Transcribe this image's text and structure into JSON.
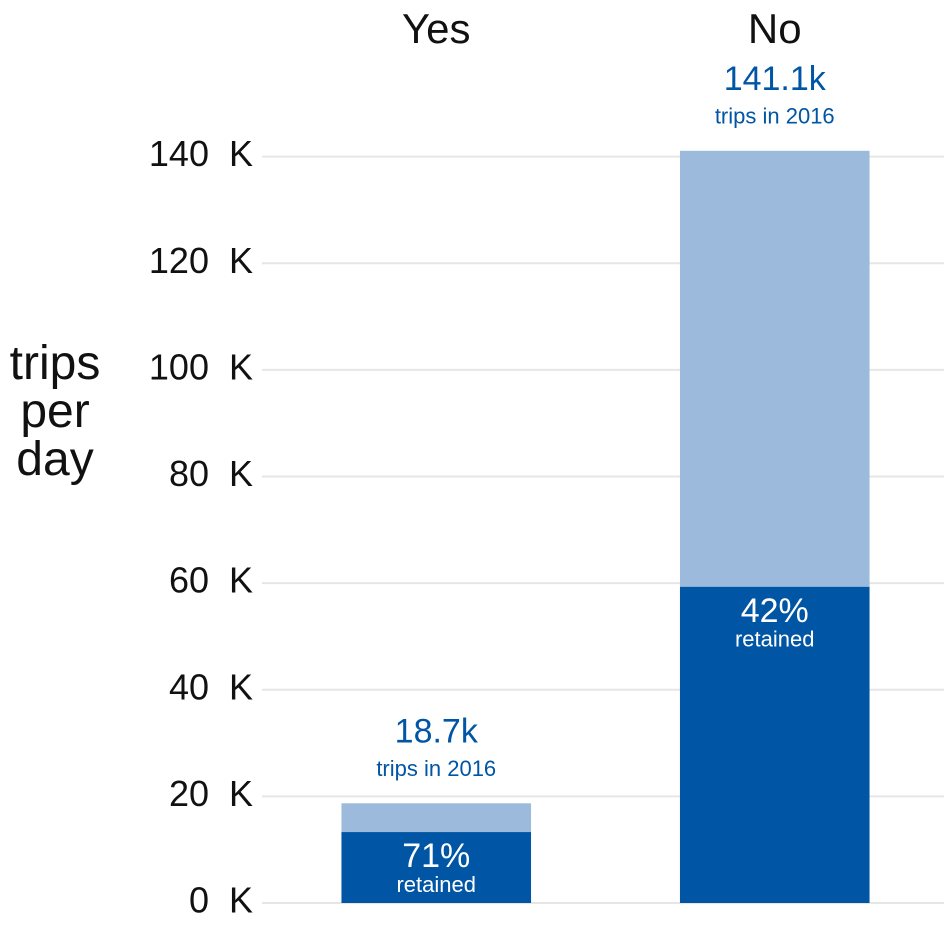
{
  "chart_data": {
    "type": "bar",
    "ylabel": "trips per day",
    "categories": [
      "Yes",
      "No"
    ],
    "series": [
      {
        "color": "#9bbadc",
        "values": [
          18.7,
          141.1
        ],
        "value_labels": [
          "18.7k",
          "141.1k"
        ],
        "sublabel": "trips in 2016"
      },
      {
        "color": "#0055a4",
        "values": [
          13.3,
          59.3
        ],
        "labels": [
          "71%",
          "42%"
        ],
        "sublabel": "retained"
      }
    ],
    "ylim": [
      0,
      142
    ],
    "yticks": [
      {
        "value": 0,
        "label": "0  K"
      },
      {
        "value": 20,
        "label": "20  K"
      },
      {
        "value": 40,
        "label": "40  K"
      },
      {
        "value": 60,
        "label": "60  K"
      },
      {
        "value": 80,
        "label": "80  K"
      },
      {
        "value": 100,
        "label": "100  K"
      },
      {
        "value": 120,
        "label": "120  K"
      },
      {
        "value": 140,
        "label": "140  K"
      }
    ],
    "grid": true
  }
}
